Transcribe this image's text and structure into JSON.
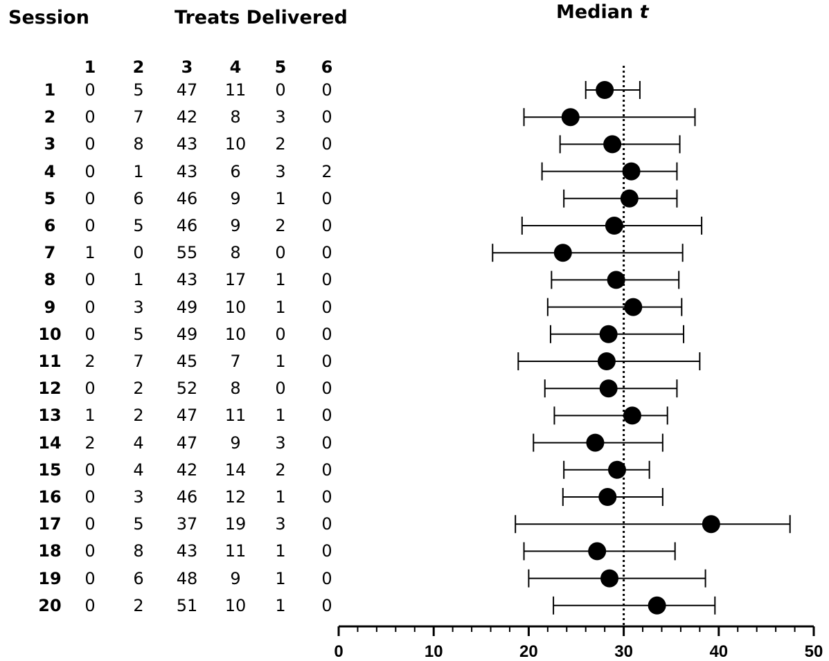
{
  "table": {
    "session_header": "Session",
    "treats_header": "Treats Delivered",
    "columns": [
      "1",
      "2",
      "3",
      "4",
      "5",
      "6"
    ],
    "rows": [
      {
        "session": "1",
        "values": [
          "0",
          "5",
          "47",
          "11",
          "0",
          "0"
        ]
      },
      {
        "session": "2",
        "values": [
          "0",
          "7",
          "42",
          "8",
          "3",
          "0"
        ]
      },
      {
        "session": "3",
        "values": [
          "0",
          "8",
          "43",
          "10",
          "2",
          "0"
        ]
      },
      {
        "session": "4",
        "values": [
          "0",
          "1",
          "43",
          "6",
          "3",
          "2"
        ]
      },
      {
        "session": "5",
        "values": [
          "0",
          "6",
          "46",
          "9",
          "1",
          "0"
        ]
      },
      {
        "session": "6",
        "values": [
          "0",
          "5",
          "46",
          "9",
          "2",
          "0"
        ]
      },
      {
        "session": "7",
        "values": [
          "1",
          "0",
          "55",
          "8",
          "0",
          "0"
        ]
      },
      {
        "session": "8",
        "values": [
          "0",
          "1",
          "43",
          "17",
          "1",
          "0"
        ]
      },
      {
        "session": "9",
        "values": [
          "0",
          "3",
          "49",
          "10",
          "1",
          "0"
        ]
      },
      {
        "session": "10",
        "values": [
          "0",
          "5",
          "49",
          "10",
          "0",
          "0"
        ]
      },
      {
        "session": "11",
        "values": [
          "2",
          "7",
          "45",
          "7",
          "1",
          "0"
        ]
      },
      {
        "session": "12",
        "values": [
          "0",
          "2",
          "52",
          "8",
          "0",
          "0"
        ]
      },
      {
        "session": "13",
        "values": [
          "1",
          "2",
          "47",
          "11",
          "1",
          "0"
        ]
      },
      {
        "session": "14",
        "values": [
          "2",
          "4",
          "47",
          "9",
          "3",
          "0"
        ]
      },
      {
        "session": "15",
        "values": [
          "0",
          "4",
          "42",
          "14",
          "2",
          "0"
        ]
      },
      {
        "session": "16",
        "values": [
          "0",
          "3",
          "46",
          "12",
          "1",
          "0"
        ]
      },
      {
        "session": "17",
        "values": [
          "0",
          "5",
          "37",
          "19",
          "3",
          "0"
        ]
      },
      {
        "session": "18",
        "values": [
          "0",
          "8",
          "43",
          "11",
          "1",
          "0"
        ]
      },
      {
        "session": "19",
        "values": [
          "0",
          "6",
          "48",
          "9",
          "1",
          "0"
        ]
      },
      {
        "session": "20",
        "values": [
          "0",
          "2",
          "51",
          "10",
          "1",
          "0"
        ]
      }
    ]
  },
  "chart_data": {
    "type": "scatter",
    "title_prefix": "Median ",
    "title_italic": "t",
    "xlim": [
      0,
      50
    ],
    "xticks": [
      0,
      10,
      20,
      30,
      40,
      50
    ],
    "reference_line_x": 30,
    "points": [
      {
        "session": 1,
        "median": 28.0,
        "low": 26.0,
        "high": 31.7
      },
      {
        "session": 2,
        "median": 24.4,
        "low": 19.5,
        "high": 37.5
      },
      {
        "session": 3,
        "median": 28.8,
        "low": 23.3,
        "high": 35.9
      },
      {
        "session": 4,
        "median": 30.8,
        "low": 21.4,
        "high": 35.6
      },
      {
        "session": 5,
        "median": 30.6,
        "low": 23.7,
        "high": 35.6
      },
      {
        "session": 6,
        "median": 29.0,
        "low": 19.3,
        "high": 38.2
      },
      {
        "session": 7,
        "median": 23.6,
        "low": 16.2,
        "high": 36.2
      },
      {
        "session": 8,
        "median": 29.2,
        "low": 22.4,
        "high": 35.8
      },
      {
        "session": 9,
        "median": 31.0,
        "low": 22.0,
        "high": 36.1
      },
      {
        "session": 10,
        "median": 28.4,
        "low": 22.3,
        "high": 36.3
      },
      {
        "session": 11,
        "median": 28.2,
        "low": 18.9,
        "high": 38.0
      },
      {
        "session": 12,
        "median": 28.4,
        "low": 21.7,
        "high": 35.6
      },
      {
        "session": 13,
        "median": 30.9,
        "low": 22.7,
        "high": 34.6
      },
      {
        "session": 14,
        "median": 27.0,
        "low": 20.5,
        "high": 34.1
      },
      {
        "session": 15,
        "median": 29.3,
        "low": 23.7,
        "high": 32.7
      },
      {
        "session": 16,
        "median": 28.3,
        "low": 23.6,
        "high": 34.1
      },
      {
        "session": 17,
        "median": 39.2,
        "low": 18.6,
        "high": 47.5
      },
      {
        "session": 18,
        "median": 27.2,
        "low": 19.5,
        "high": 35.4
      },
      {
        "session": 19,
        "median": 28.5,
        "low": 20.0,
        "high": 38.6
      },
      {
        "session": 20,
        "median": 33.5,
        "low": 22.6,
        "high": 39.6
      }
    ],
    "marker_color": "#000000"
  }
}
